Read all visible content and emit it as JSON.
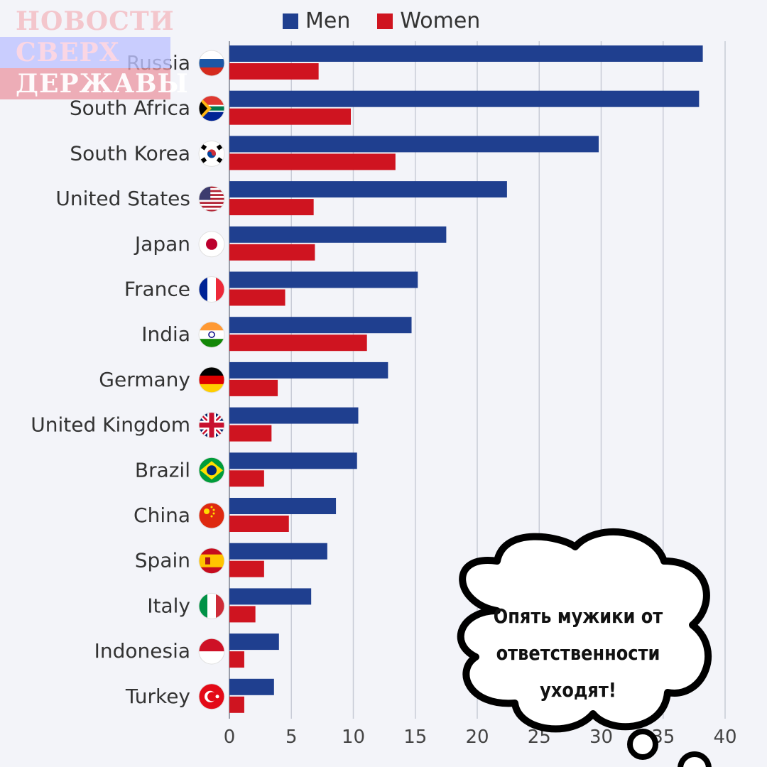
{
  "watermark": {
    "line1": "НОВОСТИ",
    "line2": "СВЕРХ",
    "line3": "ДЕРЖАВЫ"
  },
  "speech_bubble": {
    "line1": "Опять мужики от",
    "line2": "ответственности",
    "line3": "уходят!"
  },
  "colors": {
    "men": "#1f3f8f",
    "women": "#cf1420",
    "grid": "#c8cbd6",
    "axis_text": "#444444"
  },
  "chart_data": {
    "type": "bar",
    "orientation": "horizontal",
    "categories": [
      "Russia",
      "South Africa",
      "South Korea",
      "United States",
      "Japan",
      "France",
      "India",
      "Germany",
      "United Kingdom",
      "Brazil",
      "China",
      "Spain",
      "Italy",
      "Indonesia",
      "Turkey"
    ],
    "flag_icons": [
      "flag-russia-icon",
      "flag-south-africa-icon",
      "flag-south-korea-icon",
      "flag-united-states-icon",
      "flag-japan-icon",
      "flag-france-icon",
      "flag-india-icon",
      "flag-germany-icon",
      "flag-united-kingdom-icon",
      "flag-brazil-icon",
      "flag-china-icon",
      "flag-spain-icon",
      "flag-italy-icon",
      "flag-indonesia-icon",
      "flag-turkey-icon"
    ],
    "series": [
      {
        "name": "Men",
        "color": "#1f3f8f",
        "values": [
          38.2,
          37.9,
          29.8,
          22.4,
          17.5,
          15.2,
          14.7,
          12.8,
          10.4,
          10.3,
          8.6,
          7.9,
          6.6,
          4.0,
          3.6
        ]
      },
      {
        "name": "Women",
        "color": "#cf1420",
        "values": [
          7.2,
          9.8,
          13.4,
          6.8,
          6.9,
          4.5,
          11.1,
          3.9,
          3.4,
          2.8,
          4.8,
          2.8,
          2.1,
          1.2,
          1.2
        ]
      }
    ],
    "xlim": [
      0,
      40
    ],
    "xticks": [
      "0",
      "5",
      "10",
      "15",
      "20",
      "25",
      "30",
      "35",
      "40"
    ],
    "grid": true,
    "legend": "top"
  }
}
